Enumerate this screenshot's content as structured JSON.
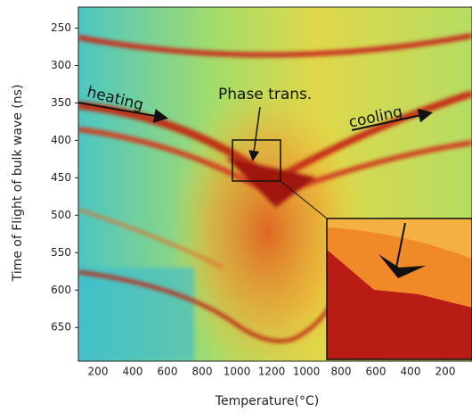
{
  "chart_data": {
    "type": "heatmap",
    "ylabel": "Time of Flight of bulk wave (ns)",
    "xlabel": "Temperature(°C)",
    "categories": [
      "200",
      "400",
      "600",
      "800",
      "1000",
      "1200",
      "1000",
      "800",
      "600",
      "400",
      "200"
    ],
    "ylim": [
      222,
      695
    ],
    "y_inverted": true,
    "yticks": [
      250,
      300,
      350,
      400,
      450,
      500,
      550,
      600,
      650
    ],
    "annotations": [
      "heating",
      "Phase trans.",
      "cooling"
    ]
  }
}
